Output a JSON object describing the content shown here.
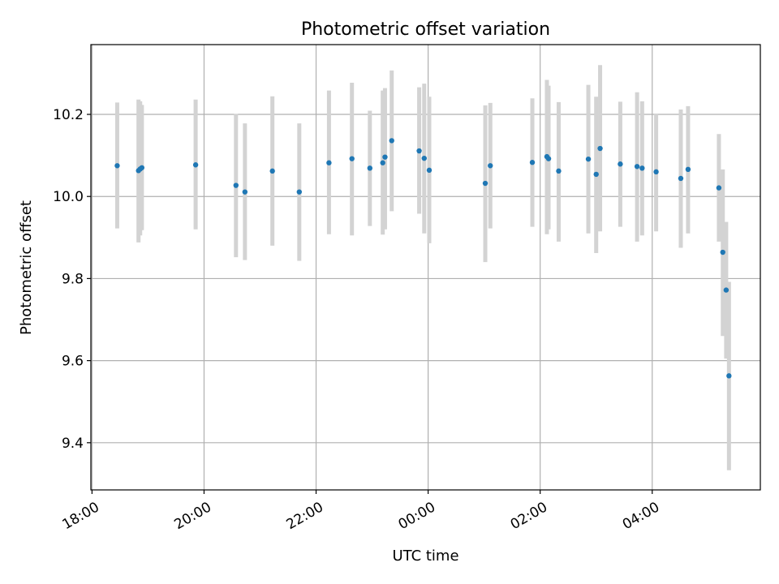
{
  "chart_data": {
    "type": "scatter",
    "title": "Photometric offset variation",
    "xlabel": "UTC time",
    "ylabel": "Photometric offset",
    "x_unit": "hours from 18:00 UTC",
    "xlim_hours": [
      -0.02,
      11.93
    ],
    "ylim": [
      9.285,
      10.37
    ],
    "x_ticks": [
      {
        "label": "18:00",
        "hours": 0
      },
      {
        "label": "20:00",
        "hours": 2
      },
      {
        "label": "22:00",
        "hours": 4
      },
      {
        "label": "00:00",
        "hours": 6
      },
      {
        "label": "02:00",
        "hours": 8
      },
      {
        "label": "04:00",
        "hours": 10
      }
    ],
    "y_ticks": [
      {
        "label": "9.4",
        "value": 9.4
      },
      {
        "label": "9.6",
        "value": 9.6
      },
      {
        "label": "9.8",
        "value": 9.8
      },
      {
        "label": "10.0",
        "value": 10.0
      },
      {
        "label": "10.2",
        "value": 10.2
      }
    ],
    "grid": true,
    "colors": {
      "points": "#1f77b4",
      "error_bars": "#d3d3d3",
      "grid": "#b0b0b0"
    },
    "points": [
      {
        "x": 0.45,
        "y": 10.075,
        "low": 9.922,
        "high": 10.229
      },
      {
        "x": 0.83,
        "y": 10.063,
        "low": 9.888,
        "high": 10.236
      },
      {
        "x": 0.86,
        "y": 10.067,
        "low": 9.905,
        "high": 10.232
      },
      {
        "x": 0.89,
        "y": 10.07,
        "low": 9.918,
        "high": 10.223
      },
      {
        "x": 1.85,
        "y": 10.077,
        "low": 9.92,
        "high": 10.236
      },
      {
        "x": 2.57,
        "y": 10.027,
        "low": 9.852,
        "high": 10.201
      },
      {
        "x": 2.73,
        "y": 10.011,
        "low": 9.845,
        "high": 10.178
      },
      {
        "x": 3.22,
        "y": 10.062,
        "low": 9.88,
        "high": 10.244
      },
      {
        "x": 3.7,
        "y": 10.011,
        "low": 9.843,
        "high": 10.178
      },
      {
        "x": 4.23,
        "y": 10.082,
        "low": 9.908,
        "high": 10.258
      },
      {
        "x": 4.64,
        "y": 10.092,
        "low": 9.905,
        "high": 10.277
      },
      {
        "x": 4.96,
        "y": 10.069,
        "low": 9.928,
        "high": 10.209
      },
      {
        "x": 5.19,
        "y": 10.082,
        "low": 9.907,
        "high": 10.258
      },
      {
        "x": 5.23,
        "y": 10.096,
        "low": 9.92,
        "high": 10.264
      },
      {
        "x": 5.35,
        "y": 10.136,
        "low": 9.964,
        "high": 10.307
      },
      {
        "x": 5.84,
        "y": 10.111,
        "low": 9.958,
        "high": 10.266
      },
      {
        "x": 5.93,
        "y": 10.093,
        "low": 9.91,
        "high": 10.275
      },
      {
        "x": 6.02,
        "y": 10.064,
        "low": 9.886,
        "high": 10.243
      },
      {
        "x": 7.02,
        "y": 10.032,
        "low": 9.84,
        "high": 10.222
      },
      {
        "x": 7.11,
        "y": 10.075,
        "low": 9.922,
        "high": 10.228
      },
      {
        "x": 7.86,
        "y": 10.083,
        "low": 9.926,
        "high": 10.239
      },
      {
        "x": 8.12,
        "y": 10.097,
        "low": 9.908,
        "high": 10.284
      },
      {
        "x": 8.15,
        "y": 10.092,
        "low": 9.92,
        "high": 10.27
      },
      {
        "x": 8.33,
        "y": 10.062,
        "low": 9.89,
        "high": 10.23
      },
      {
        "x": 8.86,
        "y": 10.091,
        "low": 9.91,
        "high": 10.272
      },
      {
        "x": 9.0,
        "y": 10.054,
        "low": 9.862,
        "high": 10.243
      },
      {
        "x": 9.07,
        "y": 10.117,
        "low": 9.915,
        "high": 10.32
      },
      {
        "x": 9.43,
        "y": 10.079,
        "low": 9.926,
        "high": 10.231
      },
      {
        "x": 9.73,
        "y": 10.073,
        "low": 9.89,
        "high": 10.254
      },
      {
        "x": 9.82,
        "y": 10.069,
        "low": 9.905,
        "high": 10.232
      },
      {
        "x": 10.07,
        "y": 10.06,
        "low": 9.915,
        "high": 10.202
      },
      {
        "x": 10.51,
        "y": 10.044,
        "low": 9.875,
        "high": 10.212
      },
      {
        "x": 10.64,
        "y": 10.066,
        "low": 9.91,
        "high": 10.22
      },
      {
        "x": 11.19,
        "y": 10.021,
        "low": 9.89,
        "high": 10.152
      },
      {
        "x": 11.26,
        "y": 9.864,
        "low": 9.66,
        "high": 10.066
      },
      {
        "x": 11.32,
        "y": 9.772,
        "low": 9.605,
        "high": 9.938
      },
      {
        "x": 11.37,
        "y": 9.563,
        "low": 9.333,
        "high": 9.792
      }
    ]
  }
}
